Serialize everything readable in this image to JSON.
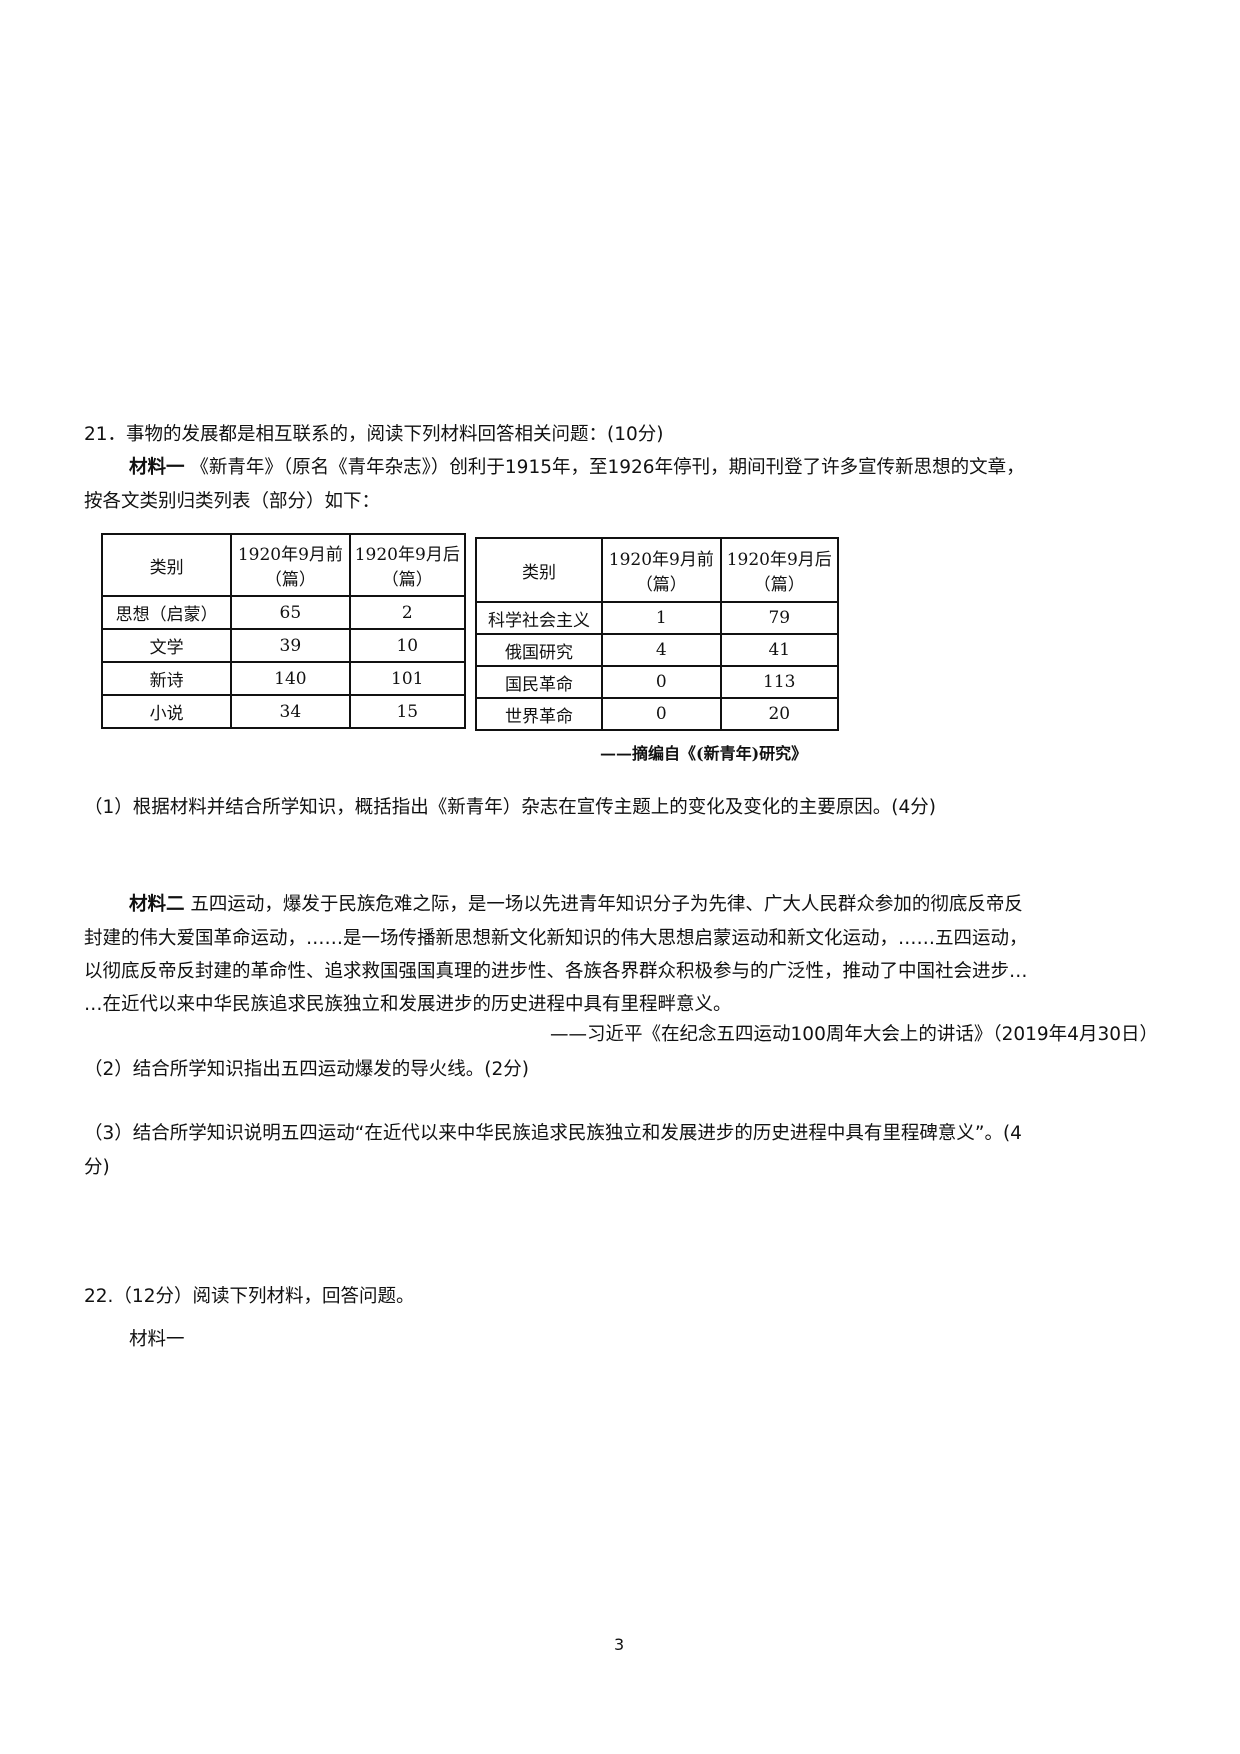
{
  "q21": {
    "title": "21．事物的发展都是相互联系的，阅读下列材料回答相关问题：(10分)",
    "m1_label": "材料一",
    "m1_line1": "《新青年》（原名《青年杂志》）创利于1915年，至1926年停刊，期间刊登了许多宣传新思想的文章，",
    "m1_line2": "按各文类别归类列表（部分）如下：",
    "table_left": {
      "headers": [
        "类别",
        "1920年9月前（篇）",
        "1920年9月后（篇）"
      ],
      "rows": [
        [
          "思想（启蒙）",
          "65",
          "2"
        ],
        [
          "文学",
          "39",
          "10"
        ],
        [
          "新诗",
          "140",
          "101"
        ],
        [
          "小说",
          "34",
          "15"
        ]
      ]
    },
    "table_right": {
      "headers": [
        "类别",
        "1920年9月前（篇）",
        "1920年9月后（篇）"
      ],
      "rows": [
        [
          "科学社会主义",
          "1",
          "79"
        ],
        [
          "俄国研究",
          "4",
          "41"
        ],
        [
          "国民革命",
          "0",
          "113"
        ],
        [
          "世界革命",
          "0",
          "20"
        ]
      ]
    },
    "table_source": "——摘编自《(新青年)研究》",
    "sub1": "（1）根据材料并结合所学知识，概括指出《新青年）杂志在宣传主题上的变化及变化的主要原因。(4分)",
    "m2_label": "材料二",
    "m2_line1": "五四运动，爆发于民族危难之际，是一场以先进青年知识分子为先律、广大人民群众参加的彻底反帝反",
    "m2_line2": "封建的伟大爱国革命运动，……是一场传播新思想新文化新知识的伟大思想启蒙运动和新文化运动，……五四运动，",
    "m2_line3": "以彻底反帝反封建的革命性、追求救国强国真理的进步性、各族各界群众积极参与的广泛性，推动了中国社会进步…",
    "m2_line4": "…在近代以来中华民族追求民族独立和发展进步的历史进程中具有里程畔意义。",
    "m2_source": "——习近平《在纪念五四运动100周年大会上的讲话》（2019年4月30日）",
    "sub2": "（2）结合所学知识指出五四运动爆发的导火线。(2分)",
    "sub3_line1": "（3）结合所学知识说明五四运动“在近代以来中华民族追求民族独立和发展进步的历史进程中具有里程碑意义”。(4",
    "sub3_line2": "分)"
  },
  "q22": {
    "title": "22.（12分）阅读下列材料，回答问题。",
    "m1_label": "材料一"
  },
  "page_number": "3"
}
